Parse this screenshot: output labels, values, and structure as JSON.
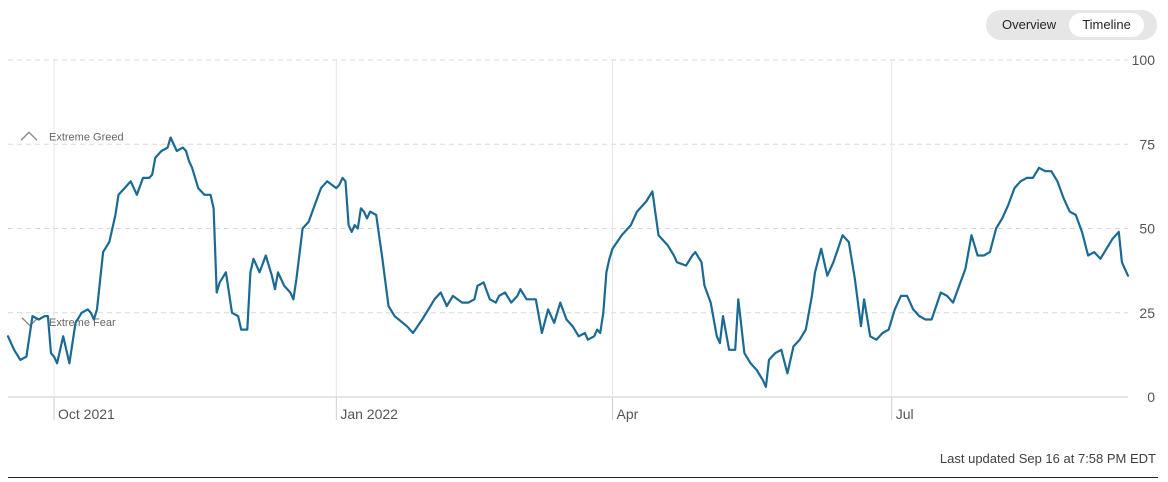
{
  "view_toggle": {
    "overview_label": "Overview",
    "timeline_label": "Timeline",
    "active": "timeline"
  },
  "footer": {
    "last_updated": "Last updated Sep 16 at 7:58 PM EDT"
  },
  "chart_data": {
    "type": "line",
    "ylim": [
      0,
      100
    ],
    "yticks": [
      0,
      25,
      50,
      75,
      100
    ],
    "xlim": [
      "2021-09-16",
      "2022-09-16"
    ],
    "xticks": [
      {
        "label": "Oct 2021",
        "date": "2021-10-01"
      },
      {
        "label": "Jan 2022",
        "date": "2022-01-01"
      },
      {
        "label": "Apr",
        "date": "2022-04-01"
      },
      {
        "label": "Jul",
        "date": "2022-07-01"
      }
    ],
    "grid": true,
    "reference_lines": [
      {
        "label": "Extreme Greed",
        "value": 75,
        "marker": "up"
      },
      {
        "label": "Extreme Fear",
        "value": 25,
        "marker": "down"
      }
    ],
    "line_color": "#1a6a94",
    "series": [
      {
        "x": [
          "2021-09-16",
          "2021-09-18",
          "2021-09-20",
          "2021-09-22",
          "2021-09-24",
          "2021-09-26",
          "2021-09-28",
          "2021-09-29",
          "2021-09-30",
          "2021-10-01",
          "2021-10-02",
          "2021-10-04",
          "2021-10-05",
          "2021-10-06",
          "2021-10-08",
          "2021-10-10",
          "2021-10-12",
          "2021-10-13",
          "2021-10-14",
          "2021-10-15",
          "2021-10-17",
          "2021-10-19",
          "2021-10-21",
          "2021-10-22",
          "2021-10-24",
          "2021-10-26",
          "2021-10-28",
          "2021-10-30",
          "2021-11-01",
          "2021-11-02",
          "2021-11-03",
          "2021-11-05",
          "2021-11-07",
          "2021-11-08",
          "2021-11-10",
          "2021-11-12",
          "2021-11-13",
          "2021-11-14",
          "2021-11-15",
          "2021-11-17",
          "2021-11-19",
          "2021-11-21",
          "2021-11-22",
          "2021-11-23",
          "2021-11-24",
          "2021-11-26",
          "2021-11-28",
          "2021-11-30",
          "2021-12-01",
          "2021-12-03",
          "2021-12-04",
          "2021-12-05",
          "2021-12-07",
          "2021-12-09",
          "2021-12-10",
          "2021-12-11",
          "2021-12-12",
          "2021-12-13",
          "2021-12-15",
          "2021-12-17",
          "2021-12-18",
          "2021-12-19",
          "2021-12-21",
          "2021-12-23",
          "2021-12-25",
          "2021-12-27",
          "2021-12-29",
          "2022-01-01",
          "2022-01-02",
          "2022-01-03",
          "2022-01-04",
          "2022-01-05",
          "2022-01-06",
          "2022-01-07",
          "2022-01-08",
          "2022-01-09",
          "2022-01-10",
          "2022-01-11",
          "2022-01-12",
          "2022-01-14",
          "2022-01-16",
          "2022-01-18",
          "2022-01-20",
          "2022-01-24",
          "2022-01-26",
          "2022-01-29",
          "2022-01-31",
          "2022-02-02",
          "2022-02-04",
          "2022-02-06",
          "2022-02-08",
          "2022-02-11",
          "2022-02-13",
          "2022-02-15",
          "2022-02-16",
          "2022-02-18",
          "2022-02-20",
          "2022-02-22",
          "2022-02-23",
          "2022-02-25",
          "2022-02-27",
          "2022-03-01",
          "2022-03-02",
          "2022-03-04",
          "2022-03-06",
          "2022-03-07",
          "2022-03-09",
          "2022-03-11",
          "2022-03-13",
          "2022-03-15",
          "2022-03-17",
          "2022-03-19",
          "2022-03-21",
          "2022-03-23",
          "2022-03-24",
          "2022-03-26",
          "2022-03-27",
          "2022-03-28",
          "2022-03-29",
          "2022-03-30",
          "2022-03-31",
          "2022-04-01",
          "2022-04-04",
          "2022-04-07",
          "2022-04-09",
          "2022-04-12",
          "2022-04-14",
          "2022-04-16",
          "2022-04-18",
          "2022-04-19",
          "2022-04-21",
          "2022-04-22",
          "2022-04-25",
          "2022-04-27",
          "2022-04-28",
          "2022-04-30",
          "2022-05-01",
          "2022-05-03",
          "2022-05-05",
          "2022-05-06",
          "2022-05-07",
          "2022-05-09",
          "2022-05-11",
          "2022-05-12",
          "2022-05-14",
          "2022-05-16",
          "2022-05-18",
          "2022-05-20",
          "2022-05-21",
          "2022-05-22",
          "2022-05-24",
          "2022-05-26",
          "2022-05-28",
          "2022-05-30",
          "2022-06-01",
          "2022-06-03",
          "2022-06-05",
          "2022-06-06",
          "2022-06-08",
          "2022-06-10",
          "2022-06-12",
          "2022-06-15",
          "2022-06-17",
          "2022-06-19",
          "2022-06-21",
          "2022-06-22",
          "2022-06-24",
          "2022-06-26",
          "2022-06-28",
          "2022-06-30",
          "2022-07-02",
          "2022-07-04",
          "2022-07-06",
          "2022-07-08",
          "2022-07-10",
          "2022-07-12",
          "2022-07-14",
          "2022-07-17",
          "2022-07-19",
          "2022-07-21",
          "2022-07-23",
          "2022-07-25",
          "2022-07-27",
          "2022-07-29",
          "2022-07-31",
          "2022-08-02",
          "2022-08-04",
          "2022-08-06",
          "2022-08-08",
          "2022-08-10",
          "2022-08-12",
          "2022-08-14",
          "2022-08-16",
          "2022-08-18",
          "2022-08-20",
          "2022-08-22",
          "2022-08-24",
          "2022-08-26",
          "2022-08-28",
          "2022-08-30",
          "2022-09-01",
          "2022-09-03",
          "2022-09-05",
          "2022-09-07",
          "2022-09-09",
          "2022-09-11",
          "2022-09-13",
          "2022-09-14",
          "2022-09-15",
          "2022-09-16"
        ],
        "y": [
          18,
          14,
          11,
          12,
          24,
          23,
          24,
          24,
          13,
          12,
          10,
          18,
          14,
          10,
          22,
          25,
          26,
          25,
          23,
          26,
          43,
          46,
          54,
          60,
          62,
          64,
          60,
          65,
          65,
          66,
          71,
          73,
          74,
          77,
          73,
          74,
          73,
          70,
          68,
          62,
          60,
          60,
          56,
          31,
          34,
          37,
          25,
          24,
          20,
          20,
          37,
          41,
          37,
          42,
          39,
          36,
          32,
          37,
          33,
          31,
          29,
          35,
          50,
          52,
          57,
          62,
          64,
          62,
          63,
          65,
          64,
          51,
          49,
          51,
          50,
          56,
          55,
          53,
          55,
          54,
          41,
          27,
          24,
          21,
          19,
          23,
          26,
          29,
          31,
          27,
          30,
          28,
          28,
          29,
          33,
          34,
          29,
          28,
          30,
          31,
          28,
          30,
          32,
          29,
          29,
          29,
          19,
          26,
          22,
          28,
          23,
          21,
          18,
          19,
          17,
          18,
          20,
          19,
          25,
          37,
          41,
          44,
          48,
          51,
          55,
          58,
          61,
          48,
          46,
          45,
          42,
          40,
          39,
          42,
          43,
          40,
          33,
          28,
          18,
          16,
          24,
          14,
          14,
          29,
          13,
          10,
          8,
          5,
          3,
          11,
          13,
          14,
          7,
          15,
          17,
          20,
          30,
          37,
          44,
          36,
          40,
          48,
          46,
          35,
          21,
          29,
          18,
          17,
          19,
          20,
          26,
          30,
          30,
          26,
          24,
          23,
          23,
          31,
          30,
          28,
          33,
          38,
          48,
          42,
          42,
          43,
          50,
          53,
          57,
          62,
          64,
          65,
          65,
          68,
          67,
          67,
          64,
          59,
          55,
          54,
          49,
          42,
          43,
          41,
          44,
          47,
          49,
          40,
          38,
          36
        ]
      }
    ]
  }
}
